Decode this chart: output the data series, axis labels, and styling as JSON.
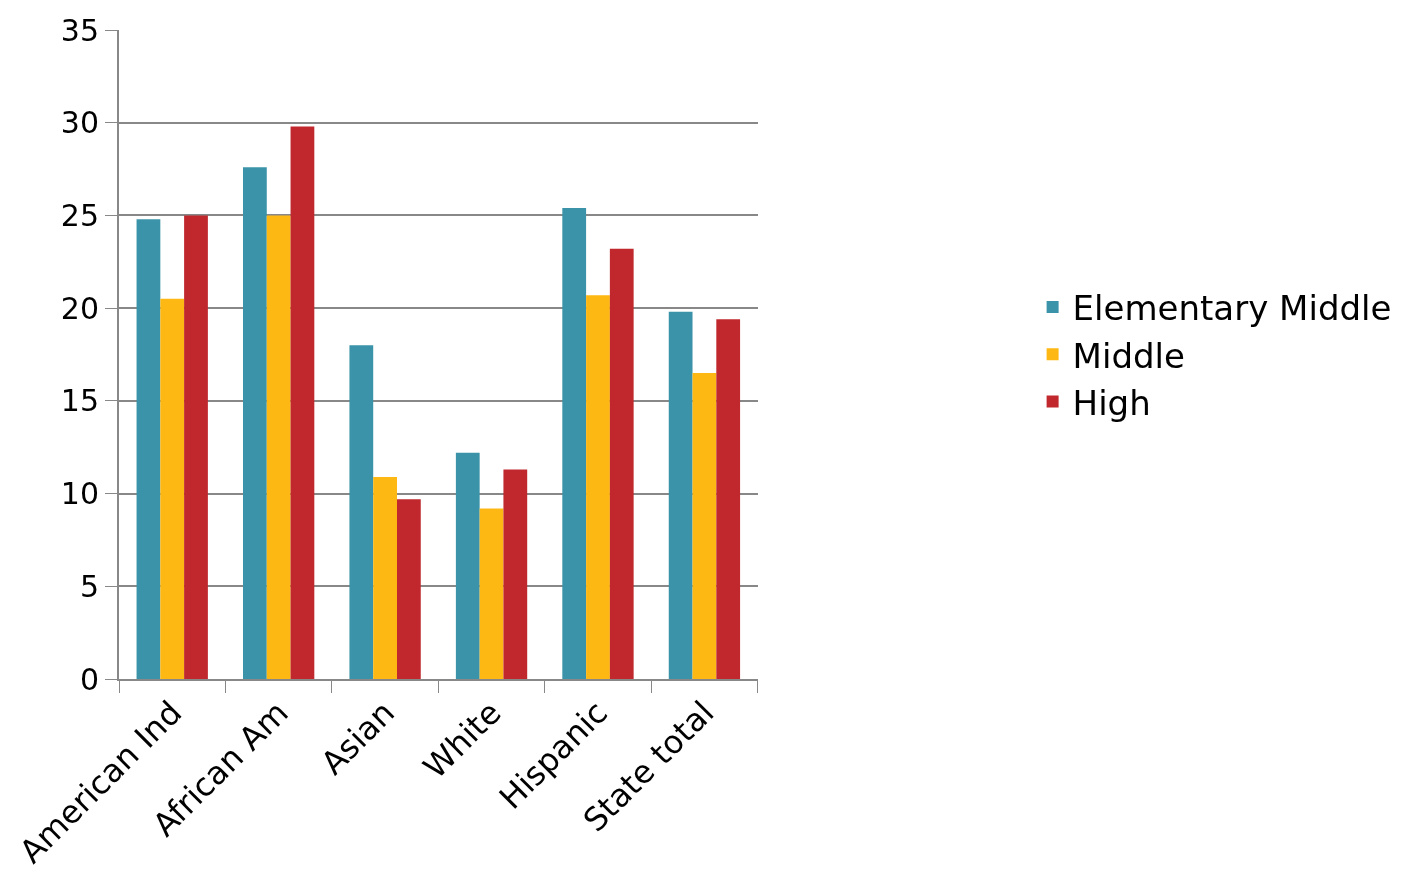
{
  "chart_data": {
    "type": "bar",
    "categories": [
      "American Ind",
      "African Am",
      "Asian",
      "White",
      "Hispanic",
      "State total"
    ],
    "series": [
      {
        "name": "Elementary Middle",
        "color": "#3a93a8",
        "values": [
          24.8,
          27.6,
          18.0,
          12.2,
          25.4,
          19.8
        ]
      },
      {
        "name": "Middle",
        "color": "#fdb813",
        "values": [
          20.5,
          25.0,
          10.9,
          9.2,
          20.7,
          16.5
        ]
      },
      {
        "name": "High",
        "color": "#c0282d",
        "values": [
          25.0,
          29.8,
          9.7,
          11.3,
          23.2,
          19.4
        ]
      }
    ],
    "ylim": [
      0,
      35
    ],
    "yticks": [
      0,
      5,
      10,
      15,
      20,
      25,
      30,
      35
    ],
    "grid": "y",
    "legend": "right"
  }
}
